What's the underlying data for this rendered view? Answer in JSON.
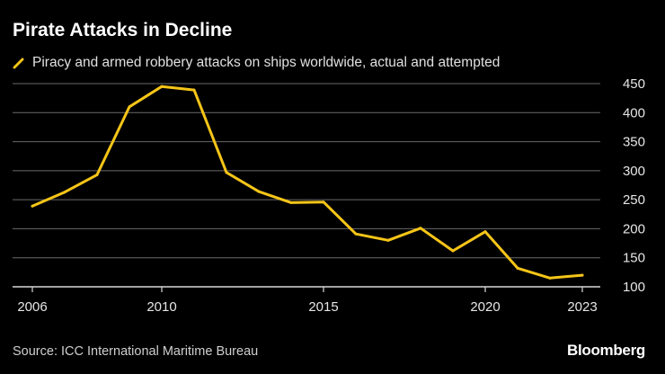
{
  "chart_data": {
    "type": "line",
    "title": "Pirate Attacks in Decline",
    "series": [
      {
        "name": "Piracy and armed robbery attacks on ships worldwide, actual and attempted",
        "color": "#f5c518",
        "x": [
          2006,
          2007,
          2008,
          2009,
          2010,
          2011,
          2012,
          2013,
          2014,
          2015,
          2016,
          2017,
          2018,
          2019,
          2020,
          2021,
          2022,
          2023
        ],
        "values": [
          239,
          263,
          293,
          410,
          445,
          439,
          297,
          264,
          245,
          246,
          191,
          180,
          201,
          162,
          195,
          132,
          115,
          120
        ]
      }
    ],
    "xlim": [
      2006,
      2023
    ],
    "ylim": [
      100,
      450
    ],
    "x_ticks": [
      2006,
      2010,
      2015,
      2020,
      2023
    ],
    "y_ticks": [
      100,
      150,
      200,
      250,
      300,
      350,
      400,
      450
    ],
    "xlabel": "",
    "ylabel": "",
    "grid": true,
    "y_axis_side": "right",
    "source": "Source: ICC International Maritime Bureau",
    "logo": "Bloomberg"
  }
}
